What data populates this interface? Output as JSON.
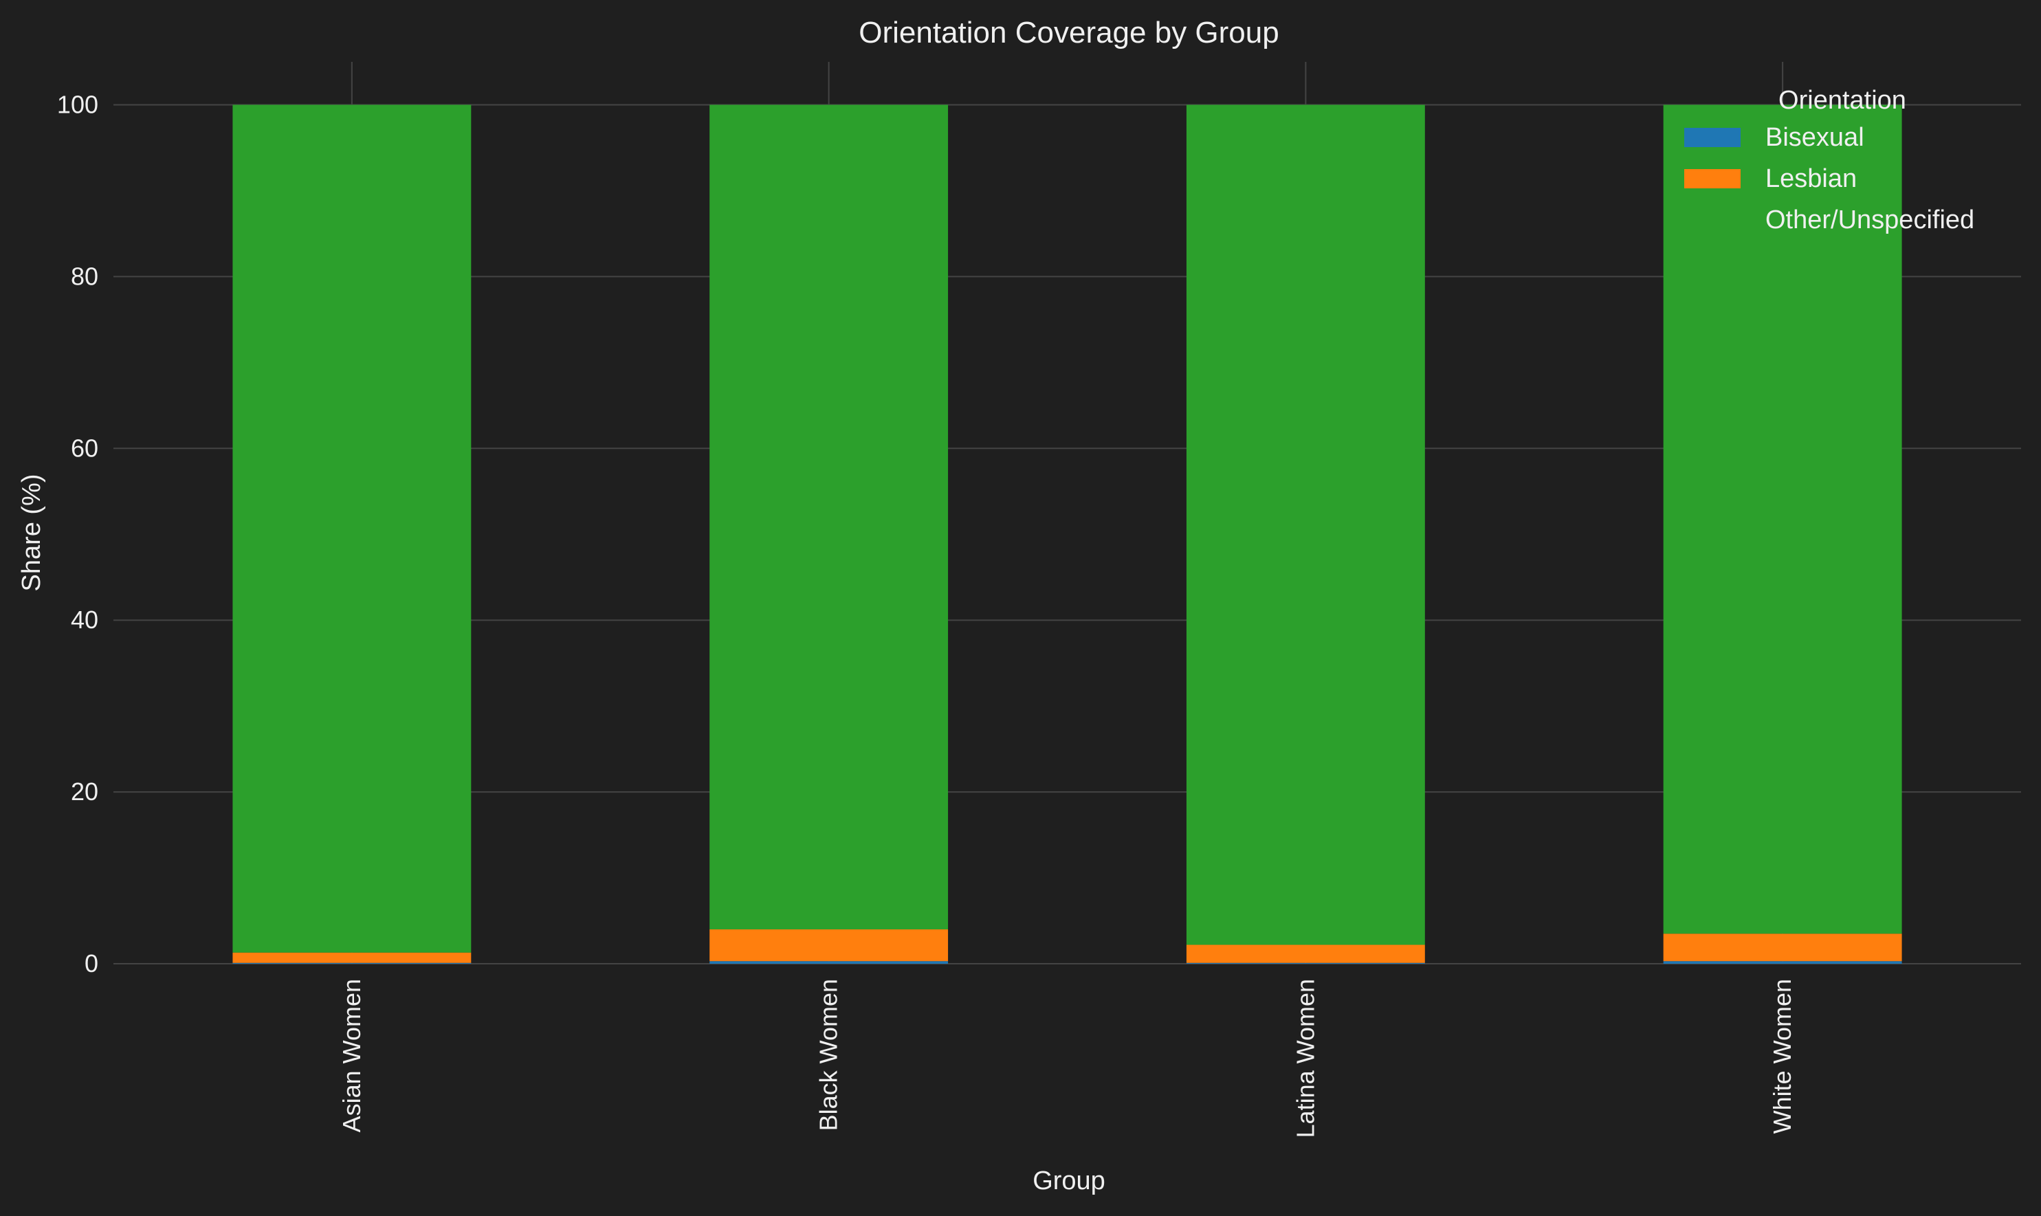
{
  "chart_data": {
    "type": "bar",
    "stacked": true,
    "title": "Orientation Coverage by Group",
    "xlabel": "Group",
    "ylabel": "Share (%)",
    "categories": [
      "Asian Women",
      "Black Women",
      "Latina Women",
      "White Women"
    ],
    "series": [
      {
        "name": "Bisexual",
        "color": "#1f77b4",
        "values": [
          0.1,
          0.3,
          0.1,
          0.3
        ]
      },
      {
        "name": "Lesbian",
        "color": "#ff7f0e",
        "values": [
          1.2,
          3.7,
          2.1,
          3.2
        ]
      },
      {
        "name": "Other/Unspecified",
        "color": "#2ca02c",
        "values": [
          98.7,
          96.0,
          97.8,
          96.5
        ]
      }
    ],
    "ylim": [
      0,
      105
    ],
    "yticks": [
      0,
      20,
      40,
      60,
      80,
      100
    ],
    "grid": true,
    "legend": {
      "title": "Orientation",
      "placement": "top-right"
    },
    "colors": {
      "background": "#1f1f1f",
      "grid": "#444444",
      "text": "#f0f0f0"
    }
  }
}
